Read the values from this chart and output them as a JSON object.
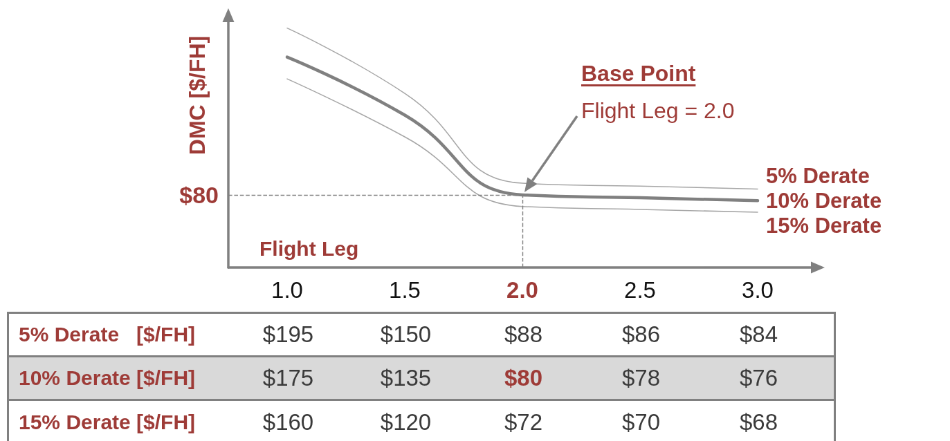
{
  "chart_data": {
    "type": "line",
    "xlabel": "Flight Leg",
    "ylabel": "DMC [$/FH]",
    "categories": [
      "1.0",
      "1.5",
      "2.0",
      "2.5",
      "3.0"
    ],
    "series": [
      {
        "name": "5% Derate",
        "color": "#a6a6a6",
        "values": [
          195,
          150,
          88,
          86,
          84
        ],
        "value_labels": [
          "$195",
          "$150",
          "$88",
          "$86",
          "$84"
        ]
      },
      {
        "name": "10% Derate",
        "color": "#808080",
        "values": [
          175,
          135,
          80,
          78,
          76
        ],
        "value_labels": [
          "$175",
          "$135",
          "$80",
          "$78",
          "$76"
        ]
      },
      {
        "name": "15% Derate",
        "color": "#a6a6a6",
        "values": [
          160,
          120,
          72,
          70,
          68
        ],
        "value_labels": [
          "$160",
          "$120",
          "$72",
          "$70",
          "$68"
        ]
      }
    ],
    "tick_labels": "x",
    "ref_lines": [
      {
        "axis": "y",
        "value": 80,
        "label": "$80",
        "color": "#7f7f7f",
        "line_style": "dashed"
      },
      {
        "axis": "x",
        "value": "2.0",
        "color": "#7f7f7f",
        "line_style": "dashed"
      }
    ],
    "annotations": [
      "Base Point",
      "Flight Leg = 2.0",
      "5% Derate   [$/FH]",
      "10% Derate [$/FH]",
      "15% Derate [$/FH]"
    ]
  }
}
